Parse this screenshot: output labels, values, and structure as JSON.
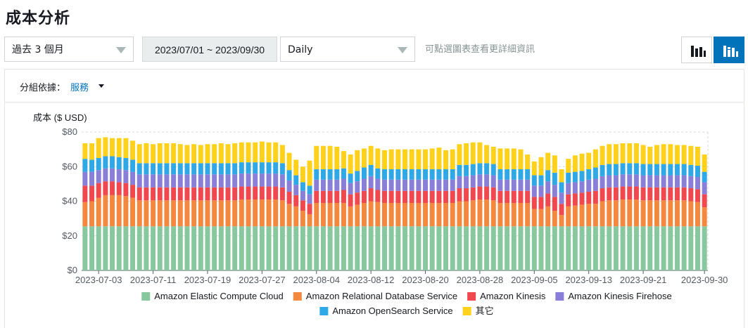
{
  "page_title": "成本分析",
  "toolbar": {
    "range_select": "過去 3 個月",
    "date_range": "2023/07/01 ~ 2023/09/30",
    "granularity_select": "Daily",
    "hint": "可點選圖表查看更詳細資訊"
  },
  "group_by": {
    "label": "分組依據：",
    "value": "服務"
  },
  "colors": {
    "Amazon Elastic Compute Cloud": "#87c89e",
    "Amazon Relational Database Service": "#f5883f",
    "Amazon Kinesis": "#f0484e",
    "Amazon Kinesis Firehose": "#8a7fd8",
    "Amazon OpenSearch Service": "#2ea8e6",
    "其它": "#ffd11a",
    "active_button": "#0073bb"
  },
  "chart_data": {
    "type": "bar",
    "stacked": true,
    "ylabel": "成本 ($ USD)",
    "ylim": [
      0,
      80
    ],
    "yticks": [
      "$0",
      "$20",
      "$40",
      "$60",
      "$80"
    ],
    "xtick_labels": [
      "2023-07-03",
      "2023-07-11",
      "2023-07-19",
      "2023-07-27",
      "2023-08-04",
      "2023-08-12",
      "2023-08-20",
      "2023-08-28",
      "2023-09-05",
      "2023-09-13",
      "2023-09-21",
      "2023-09-30"
    ],
    "xtick_indices": [
      2,
      10,
      18,
      26,
      34,
      42,
      50,
      58,
      66,
      74,
      82,
      91
    ],
    "categories": [
      "2023-07-01",
      "2023-07-02",
      "2023-07-03",
      "2023-07-04",
      "2023-07-05",
      "2023-07-06",
      "2023-07-07",
      "2023-07-08",
      "2023-07-09",
      "2023-07-10",
      "2023-07-11",
      "2023-07-12",
      "2023-07-13",
      "2023-07-14",
      "2023-07-15",
      "2023-07-16",
      "2023-07-17",
      "2023-07-18",
      "2023-07-19",
      "2023-07-20",
      "2023-07-21",
      "2023-07-22",
      "2023-07-23",
      "2023-07-24",
      "2023-07-25",
      "2023-07-26",
      "2023-07-27",
      "2023-07-28",
      "2023-07-29",
      "2023-07-30",
      "2023-07-31",
      "2023-08-01",
      "2023-08-02",
      "2023-08-03",
      "2023-08-04",
      "2023-08-05",
      "2023-08-06",
      "2023-08-07",
      "2023-08-08",
      "2023-08-09",
      "2023-08-10",
      "2023-08-11",
      "2023-08-12",
      "2023-08-13",
      "2023-08-14",
      "2023-08-15",
      "2023-08-16",
      "2023-08-17",
      "2023-08-18",
      "2023-08-19",
      "2023-08-20",
      "2023-08-21",
      "2023-08-22",
      "2023-08-23",
      "2023-08-24",
      "2023-08-25",
      "2023-08-26",
      "2023-08-27",
      "2023-08-28",
      "2023-08-29",
      "2023-08-30",
      "2023-08-31",
      "2023-09-01",
      "2023-09-02",
      "2023-09-03",
      "2023-09-04",
      "2023-09-05",
      "2023-09-06",
      "2023-09-07",
      "2023-09-08",
      "2023-09-09",
      "2023-09-10",
      "2023-09-11",
      "2023-09-12",
      "2023-09-13",
      "2023-09-14",
      "2023-09-15",
      "2023-09-16",
      "2023-09-17",
      "2023-09-18",
      "2023-09-19",
      "2023-09-20",
      "2023-09-21",
      "2023-09-22",
      "2023-09-23",
      "2023-09-24",
      "2023-09-25",
      "2023-09-26",
      "2023-09-27",
      "2023-09-28",
      "2023-09-29",
      "2023-09-30"
    ],
    "series": [
      {
        "name": "Amazon Elastic Compute Cloud",
        "values": [
          25.5,
          25.5,
          25.5,
          25.5,
          25.5,
          25.5,
          25.5,
          25.5,
          25.5,
          25.5,
          25.5,
          25.5,
          25.5,
          25.5,
          25.5,
          25.5,
          25.5,
          25.5,
          25.5,
          25.5,
          25.5,
          25.5,
          25.5,
          25.5,
          25.5,
          25.5,
          25.5,
          25.5,
          25.5,
          25.5,
          25.5,
          25.5,
          25.5,
          25.5,
          25.5,
          25.5,
          25.5,
          25.5,
          25.5,
          25.5,
          25.5,
          25.5,
          25.5,
          25.5,
          25.5,
          25.5,
          25.5,
          25.5,
          25.5,
          25.5,
          25.5,
          25.5,
          25.5,
          25.5,
          25.5,
          25.5,
          25.5,
          25.5,
          25.5,
          25.5,
          25.5,
          25.5,
          25.5,
          25.5,
          25.5,
          25.5,
          25.5,
          25.5,
          25.5,
          25.5,
          25.5,
          25.5,
          25.5,
          25.5,
          25.5,
          25.5,
          25.5,
          25.5,
          25.5,
          25.5,
          25.5,
          25.5,
          25.5,
          25.5,
          25.5,
          25.5,
          25.5,
          25.5,
          25.5,
          25.5,
          25.5,
          25.5
        ]
      },
      {
        "name": "Amazon Relational Database Service",
        "values": [
          14.0,
          14.5,
          16.5,
          18.0,
          18.0,
          18.0,
          17.5,
          16.5,
          15.0,
          15.0,
          15.0,
          15.0,
          15.0,
          15.0,
          15.0,
          15.0,
          15.0,
          15.0,
          15.0,
          15.0,
          15.0,
          15.0,
          15.0,
          15.5,
          15.5,
          15.5,
          15.5,
          15.5,
          15.5,
          15.0,
          13.0,
          11.5,
          9.0,
          7.0,
          13.5,
          13.5,
          13.5,
          13.5,
          13.5,
          11.5,
          12.5,
          13.5,
          14.5,
          14.0,
          13.5,
          13.5,
          13.5,
          13.5,
          13.5,
          13.5,
          13.5,
          13.5,
          13.5,
          13.5,
          13.5,
          14.5,
          14.5,
          15.0,
          15.5,
          15.5,
          15.0,
          13.5,
          13.5,
          13.5,
          13.5,
          13.5,
          10.0,
          10.0,
          11.5,
          9.0,
          6.5,
          11.5,
          12.0,
          12.5,
          13.0,
          13.0,
          14.5,
          15.0,
          15.0,
          15.5,
          15.5,
          15.5,
          15.0,
          15.0,
          15.0,
          15.0,
          15.0,
          15.0,
          15.0,
          14.5,
          14.0,
          11.0
        ]
      },
      {
        "name": "Amazon Kinesis",
        "values": [
          9.5,
          9.0,
          8.5,
          8.0,
          8.0,
          7.5,
          7.5,
          7.5,
          7.5,
          7.5,
          7.5,
          7.5,
          7.5,
          7.5,
          7.5,
          7.5,
          7.5,
          7.5,
          7.5,
          7.5,
          7.5,
          7.5,
          7.5,
          7.5,
          7.5,
          7.5,
          7.5,
          7.5,
          7.5,
          7.5,
          7.0,
          6.5,
          6.0,
          6.0,
          7.0,
          7.0,
          7.0,
          7.0,
          7.5,
          7.0,
          7.0,
          7.0,
          7.5,
          7.0,
          7.0,
          7.0,
          7.0,
          7.0,
          7.0,
          7.0,
          7.0,
          7.0,
          7.0,
          7.0,
          7.0,
          7.5,
          7.5,
          7.5,
          7.5,
          7.5,
          7.5,
          7.0,
          7.0,
          7.0,
          7.0,
          7.0,
          7.0,
          7.0,
          7.5,
          8.0,
          6.5,
          7.0,
          7.0,
          7.0,
          7.0,
          7.5,
          7.5,
          7.5,
          7.5,
          7.5,
          7.5,
          7.5,
          7.5,
          7.5,
          7.5,
          7.5,
          7.5,
          7.5,
          7.5,
          7.5,
          7.5,
          7.5
        ]
      },
      {
        "name": "Amazon Kinesis Firehose",
        "values": [
          8.0,
          8.0,
          7.5,
          7.5,
          7.5,
          7.5,
          7.5,
          7.5,
          7.5,
          7.5,
          7.5,
          7.5,
          7.5,
          7.5,
          7.5,
          7.5,
          7.5,
          7.5,
          7.5,
          7.5,
          7.5,
          7.5,
          7.5,
          7.5,
          7.5,
          7.5,
          7.5,
          7.5,
          7.5,
          7.5,
          6.5,
          6.0,
          5.5,
          5.5,
          6.5,
          6.5,
          6.5,
          6.5,
          6.5,
          6.5,
          6.5,
          7.0,
          7.0,
          6.5,
          6.5,
          6.5,
          6.5,
          6.5,
          6.5,
          6.5,
          6.5,
          6.5,
          6.5,
          6.5,
          6.5,
          7.0,
          7.0,
          7.0,
          7.0,
          7.0,
          7.0,
          6.5,
          6.5,
          6.5,
          6.5,
          6.5,
          6.5,
          6.5,
          7.0,
          7.0,
          6.5,
          6.5,
          6.5,
          6.5,
          7.0,
          7.0,
          7.0,
          7.0,
          7.0,
          7.0,
          7.0,
          7.0,
          7.0,
          7.0,
          7.0,
          7.0,
          7.0,
          7.0,
          7.0,
          7.0,
          7.0,
          7.0
        ]
      },
      {
        "name": "Amazon OpenSearch Service",
        "values": [
          7.5,
          7.0,
          7.0,
          7.0,
          7.0,
          7.0,
          7.0,
          7.0,
          6.5,
          6.5,
          6.5,
          6.5,
          6.5,
          6.5,
          6.5,
          6.5,
          6.5,
          6.5,
          6.5,
          6.5,
          6.5,
          6.5,
          6.5,
          6.5,
          6.5,
          6.5,
          6.5,
          6.5,
          6.5,
          6.5,
          6.0,
          5.5,
          5.0,
          5.0,
          6.0,
          6.0,
          6.0,
          6.0,
          6.0,
          5.5,
          6.0,
          6.5,
          6.5,
          6.0,
          6.0,
          6.0,
          6.0,
          6.0,
          6.0,
          6.0,
          6.0,
          6.0,
          6.0,
          6.0,
          6.0,
          6.5,
          6.5,
          6.5,
          6.5,
          6.5,
          6.5,
          6.0,
          6.0,
          6.0,
          6.0,
          6.0,
          6.0,
          6.0,
          6.5,
          7.0,
          6.0,
          6.0,
          6.0,
          6.0,
          6.0,
          6.5,
          6.5,
          6.5,
          6.5,
          6.5,
          6.5,
          6.5,
          6.5,
          6.5,
          6.5,
          6.5,
          6.5,
          6.5,
          6.5,
          6.5,
          6.5,
          6.0
        ]
      },
      {
        "name": "其它",
        "values": [
          9.0,
          9.5,
          11.5,
          11.0,
          10.5,
          11.0,
          11.5,
          11.0,
          11.0,
          11.5,
          11.0,
          11.5,
          11.5,
          11.5,
          11.0,
          10.5,
          11.0,
          10.5,
          11.0,
          11.0,
          11.5,
          11.0,
          11.5,
          11.5,
          11.5,
          11.5,
          12.0,
          11.5,
          11.5,
          10.5,
          10.0,
          9.0,
          9.0,
          14.5,
          13.5,
          13.5,
          13.5,
          13.0,
          10.0,
          11.0,
          12.0,
          11.0,
          11.0,
          11.5,
          11.0,
          11.5,
          11.5,
          11.5,
          11.5,
          11.5,
          11.5,
          12.0,
          12.5,
          11.0,
          11.5,
          12.0,
          12.5,
          12.5,
          12.0,
          10.5,
          10.0,
          12.0,
          12.0,
          12.0,
          11.5,
          8.5,
          8.0,
          10.5,
          10.0,
          10.0,
          7.5,
          8.0,
          9.5,
          10.0,
          9.5,
          10.5,
          11.0,
          11.5,
          11.5,
          11.5,
          11.5,
          11.5,
          11.0,
          10.0,
          11.0,
          11.5,
          11.5,
          11.0,
          11.0,
          11.0,
          11.0,
          10.0
        ]
      }
    ],
    "legend_position": "bottom",
    "grid": true
  }
}
